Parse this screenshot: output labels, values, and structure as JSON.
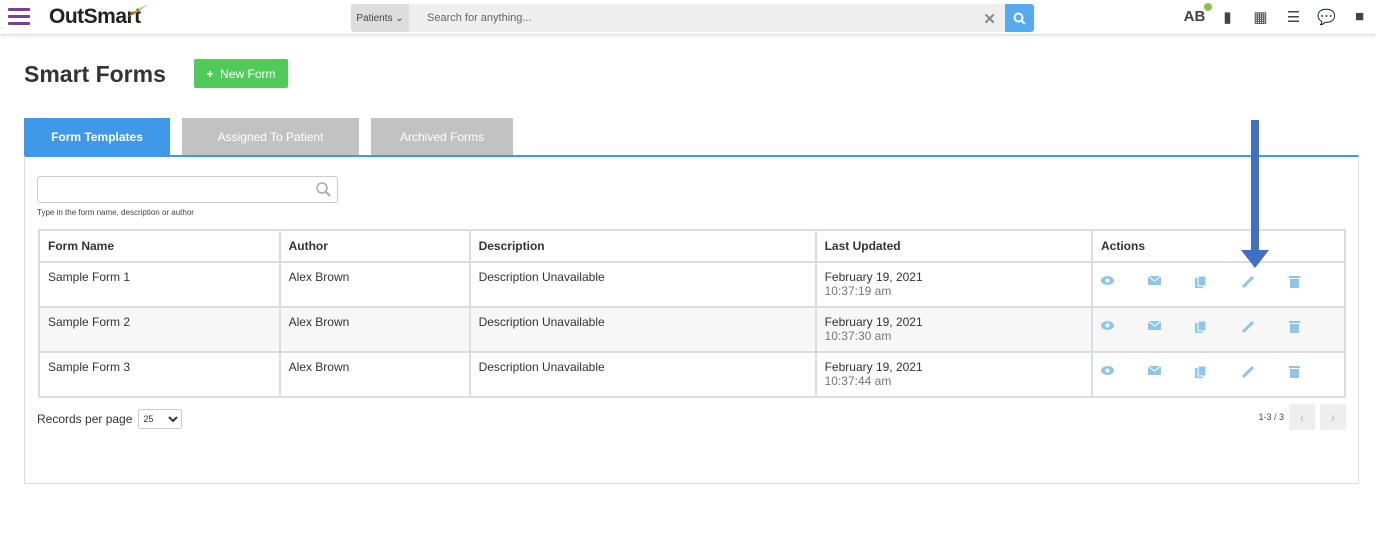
{
  "header": {
    "brand": "OutSmart",
    "search_scope": "Patients",
    "search_placeholder": "Search for anything...",
    "user_initials": "AB",
    "icons": [
      "document-icon",
      "calendar-icon",
      "checklist-icon",
      "chat-icon",
      "note-icon"
    ]
  },
  "page": {
    "title": "Smart Forms",
    "new_form_label": "New Form"
  },
  "tabs": [
    {
      "label": "Form Templates",
      "active": true
    },
    {
      "label": "Assigned To Patient"
    },
    {
      "label": "Archived Forms"
    }
  ],
  "filter": {
    "value": "",
    "hint": "Type in the form name, description or author"
  },
  "table": {
    "columns": [
      "Form Name",
      "Author",
      "Description",
      "Last Updated",
      "Actions"
    ],
    "rows": [
      {
        "name": "Sample Form 1",
        "author": "Alex Brown",
        "description": "Description Unavailable",
        "date": "February 19, 2021",
        "time": "10:37:19 am"
      },
      {
        "name": "Sample Form 2",
        "author": "Alex Brown",
        "description": "Description Unavailable",
        "date": "February 19, 2021",
        "time": "10:37:30 am"
      },
      {
        "name": "Sample Form 3",
        "author": "Alex Brown",
        "description": "Description Unavailable",
        "date": "February 19, 2021",
        "time": "10:37:44 am"
      }
    ]
  },
  "footer": {
    "records_label": "Records per page",
    "records_value": "25",
    "range": "1-3 / 3"
  },
  "colors": {
    "accent": "#4099e8",
    "new_button": "#4fcb5a",
    "brand_purple": "#7b3f98",
    "annotation_arrow": "#3f6fc6"
  }
}
